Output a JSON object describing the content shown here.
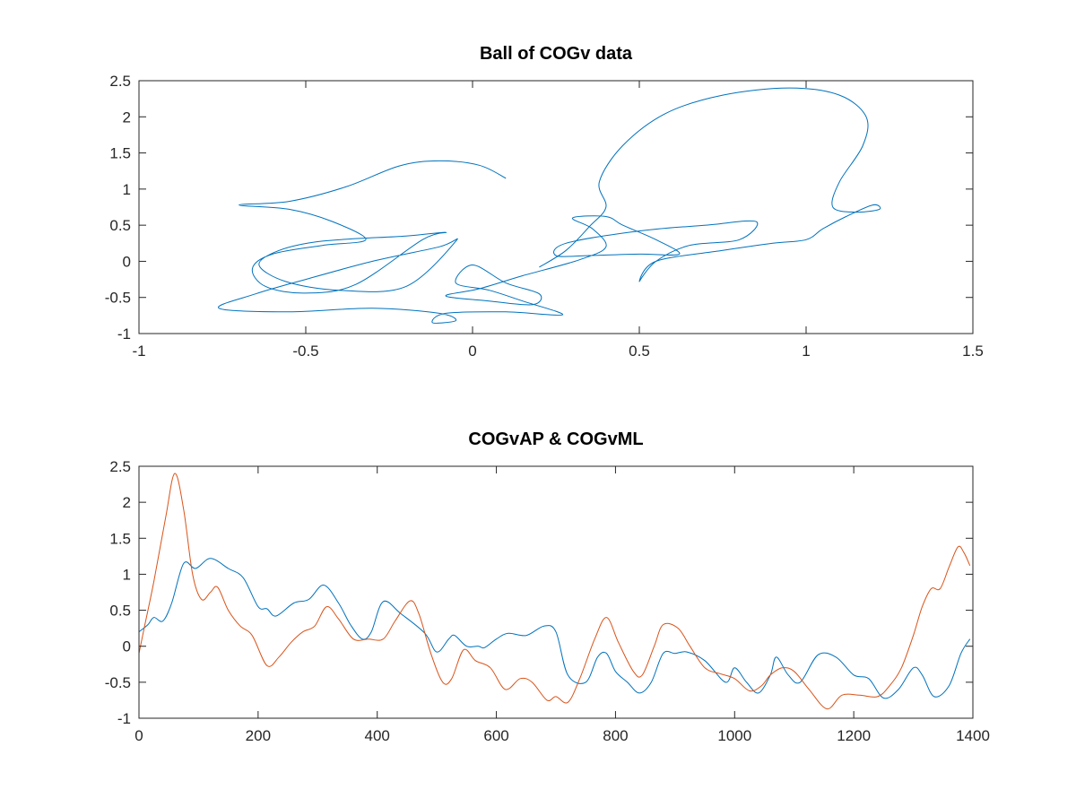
{
  "chart_data": [
    {
      "type": "line",
      "title": "Ball of COGv data",
      "xlabel": "",
      "ylabel": "",
      "xlim": [
        -1,
        1.5
      ],
      "ylim": [
        -1,
        2.5
      ],
      "xticks": [
        "-1",
        "-0.5",
        "0",
        "0.5",
        "1",
        "1.5"
      ],
      "yticks": [
        "-1",
        "-0.5",
        "0",
        "0.5",
        "1",
        "1.5",
        "2",
        "2.5"
      ],
      "grid": false,
      "colors": [
        "#0072bd"
      ],
      "series": [
        {
          "points": [
            [
              0.1,
              1.15
            ],
            [
              0.02,
              1.33
            ],
            [
              -0.1,
              1.39
            ],
            [
              -0.22,
              1.32
            ],
            [
              -0.38,
              1.03
            ],
            [
              -0.55,
              0.83
            ],
            [
              -0.7,
              0.78
            ],
            [
              -0.55,
              0.72
            ],
            [
              -0.42,
              0.55
            ],
            [
              -0.32,
              0.3
            ],
            [
              -0.45,
              0.22
            ],
            [
              -0.6,
              0.1
            ],
            [
              -0.66,
              -0.1
            ],
            [
              -0.62,
              -0.35
            ],
            [
              -0.5,
              -0.44
            ],
            [
              -0.35,
              -0.32
            ],
            [
              -0.15,
              0.3
            ],
            [
              -0.08,
              0.4
            ],
            [
              -0.2,
              0.35
            ],
            [
              -0.45,
              0.28
            ],
            [
              -0.58,
              0.15
            ],
            [
              -0.64,
              -0.05
            ],
            [
              -0.56,
              -0.28
            ],
            [
              -0.4,
              -0.4
            ],
            [
              -0.2,
              -0.35
            ],
            [
              -0.05,
              0.28
            ],
            [
              -0.1,
              0.2
            ],
            [
              -0.3,
              0.0
            ],
            [
              -0.5,
              -0.25
            ],
            [
              -0.65,
              -0.45
            ],
            [
              -0.76,
              -0.65
            ],
            [
              -0.55,
              -0.7
            ],
            [
              -0.3,
              -0.65
            ],
            [
              -0.1,
              -0.72
            ],
            [
              -0.05,
              -0.82
            ],
            [
              -0.12,
              -0.85
            ],
            [
              -0.08,
              -0.72
            ],
            [
              0.1,
              -0.7
            ],
            [
              0.27,
              -0.74
            ],
            [
              0.15,
              -0.55
            ],
            [
              0.05,
              -0.4
            ],
            [
              -0.05,
              -0.3
            ],
            [
              0.0,
              -0.05
            ],
            [
              0.1,
              -0.3
            ],
            [
              0.2,
              -0.45
            ],
            [
              0.18,
              -0.6
            ],
            [
              0.05,
              -0.55
            ],
            [
              -0.08,
              -0.48
            ],
            [
              0.02,
              -0.38
            ],
            [
              0.15,
              -0.2
            ],
            [
              0.32,
              0.02
            ],
            [
              0.4,
              0.2
            ],
            [
              0.36,
              0.45
            ],
            [
              0.3,
              0.6
            ],
            [
              0.4,
              0.62
            ],
            [
              0.45,
              0.5
            ],
            [
              0.55,
              0.3
            ],
            [
              0.62,
              0.1
            ],
            [
              0.5,
              0.1
            ],
            [
              0.35,
              0.08
            ],
            [
              0.25,
              0.08
            ],
            [
              0.28,
              0.25
            ],
            [
              0.5,
              0.42
            ],
            [
              0.7,
              0.5
            ],
            [
              0.85,
              0.55
            ],
            [
              0.8,
              0.3
            ],
            [
              0.65,
              0.22
            ],
            [
              0.55,
              0.0
            ],
            [
              0.5,
              -0.28
            ],
            [
              0.55,
              0.0
            ],
            [
              0.75,
              0.15
            ],
            [
              0.9,
              0.25
            ],
            [
              1.0,
              0.3
            ],
            [
              1.05,
              0.45
            ],
            [
              1.12,
              0.62
            ],
            [
              1.2,
              0.78
            ],
            [
              1.22,
              0.72
            ],
            [
              1.15,
              0.68
            ],
            [
              1.08,
              0.75
            ],
            [
              1.1,
              1.1
            ],
            [
              1.17,
              1.6
            ],
            [
              1.18,
              2.0
            ],
            [
              1.1,
              2.3
            ],
            [
              0.95,
              2.4
            ],
            [
              0.75,
              2.3
            ],
            [
              0.58,
              2.05
            ],
            [
              0.45,
              1.6
            ],
            [
              0.38,
              1.1
            ],
            [
              0.4,
              0.75
            ],
            [
              0.35,
              0.48
            ],
            [
              0.28,
              0.15
            ],
            [
              0.2,
              -0.08
            ]
          ]
        }
      ]
    },
    {
      "type": "line",
      "title": "COGvAP & COGvML",
      "xlabel": "",
      "ylabel": "",
      "xlim": [
        0,
        1400
      ],
      "ylim": [
        -1,
        2.5
      ],
      "xticks": [
        "0",
        "200",
        "400",
        "600",
        "800",
        "1000",
        "1200",
        "1400"
      ],
      "yticks": [
        "-1",
        "-0.5",
        "0",
        "0.5",
        "1",
        "1.5",
        "2",
        "2.5"
      ],
      "grid": false,
      "colors": [
        "#0072bd",
        "#d95319"
      ],
      "series": [
        {
          "points": [
            [
              0,
              0.2
            ],
            [
              15,
              0.3
            ],
            [
              25,
              0.4
            ],
            [
              40,
              0.35
            ],
            [
              55,
              0.6
            ],
            [
              75,
              1.15
            ],
            [
              95,
              1.08
            ],
            [
              120,
              1.22
            ],
            [
              150,
              1.08
            ],
            [
              175,
              0.95
            ],
            [
              200,
              0.55
            ],
            [
              215,
              0.52
            ],
            [
              230,
              0.42
            ],
            [
              260,
              0.6
            ],
            [
              285,
              0.65
            ],
            [
              310,
              0.85
            ],
            [
              335,
              0.6
            ],
            [
              355,
              0.3
            ],
            [
              375,
              0.1
            ],
            [
              390,
              0.2
            ],
            [
              410,
              0.62
            ],
            [
              440,
              0.45
            ],
            [
              480,
              0.18
            ],
            [
              500,
              -0.08
            ],
            [
              520,
              0.1
            ],
            [
              530,
              0.15
            ],
            [
              550,
              0.0
            ],
            [
              570,
              0.0
            ],
            [
              580,
              -0.02
            ],
            [
              600,
              0.1
            ],
            [
              620,
              0.18
            ],
            [
              650,
              0.15
            ],
            [
              680,
              0.28
            ],
            [
              700,
              0.2
            ],
            [
              720,
              -0.4
            ],
            [
              750,
              -0.5
            ],
            [
              770,
              -0.15
            ],
            [
              785,
              -0.1
            ],
            [
              800,
              -0.35
            ],
            [
              820,
              -0.5
            ],
            [
              840,
              -0.65
            ],
            [
              860,
              -0.5
            ],
            [
              880,
              -0.1
            ],
            [
              900,
              -0.1
            ],
            [
              920,
              -0.08
            ],
            [
              950,
              -0.2
            ],
            [
              985,
              -0.5
            ],
            [
              1000,
              -0.3
            ],
            [
              1020,
              -0.5
            ],
            [
              1040,
              -0.65
            ],
            [
              1060,
              -0.4
            ],
            [
              1070,
              -0.15
            ],
            [
              1090,
              -0.4
            ],
            [
              1110,
              -0.5
            ],
            [
              1140,
              -0.12
            ],
            [
              1170,
              -0.15
            ],
            [
              1200,
              -0.4
            ],
            [
              1225,
              -0.45
            ],
            [
              1250,
              -0.72
            ],
            [
              1275,
              -0.6
            ],
            [
              1300,
              -0.3
            ],
            [
              1315,
              -0.4
            ],
            [
              1335,
              -0.7
            ],
            [
              1360,
              -0.55
            ],
            [
              1380,
              -0.1
            ],
            [
              1395,
              0.1
            ]
          ]
        },
        {
          "points": [
            [
              0,
              -0.1
            ],
            [
              10,
              0.3
            ],
            [
              25,
              0.9
            ],
            [
              45,
              1.8
            ],
            [
              60,
              2.4
            ],
            [
              75,
              1.9
            ],
            [
              90,
              1.0
            ],
            [
              105,
              0.65
            ],
            [
              120,
              0.75
            ],
            [
              132,
              0.82
            ],
            [
              150,
              0.5
            ],
            [
              170,
              0.28
            ],
            [
              190,
              0.15
            ],
            [
              215,
              -0.27
            ],
            [
              235,
              -0.15
            ],
            [
              255,
              0.05
            ],
            [
              275,
              0.2
            ],
            [
              295,
              0.28
            ],
            [
              315,
              0.55
            ],
            [
              335,
              0.38
            ],
            [
              360,
              0.1
            ],
            [
              385,
              0.1
            ],
            [
              410,
              0.1
            ],
            [
              430,
              0.35
            ],
            [
              455,
              0.63
            ],
            [
              470,
              0.45
            ],
            [
              490,
              -0.1
            ],
            [
              510,
              -0.5
            ],
            [
              525,
              -0.45
            ],
            [
              545,
              -0.05
            ],
            [
              565,
              -0.2
            ],
            [
              590,
              -0.3
            ],
            [
              615,
              -0.6
            ],
            [
              640,
              -0.45
            ],
            [
              660,
              -0.5
            ],
            [
              685,
              -0.75
            ],
            [
              700,
              -0.7
            ],
            [
              720,
              -0.78
            ],
            [
              740,
              -0.45
            ],
            [
              765,
              0.1
            ],
            [
              785,
              0.4
            ],
            [
              805,
              0.05
            ],
            [
              830,
              -0.35
            ],
            [
              845,
              -0.4
            ],
            [
              865,
              0.0
            ],
            [
              880,
              0.3
            ],
            [
              905,
              0.25
            ],
            [
              925,
              0.0
            ],
            [
              950,
              -0.3
            ],
            [
              975,
              -0.38
            ],
            [
              1000,
              -0.45
            ],
            [
              1025,
              -0.62
            ],
            [
              1045,
              -0.55
            ],
            [
              1060,
              -0.4
            ],
            [
              1080,
              -0.3
            ],
            [
              1100,
              -0.35
            ],
            [
              1125,
              -0.6
            ],
            [
              1155,
              -0.87
            ],
            [
              1180,
              -0.68
            ],
            [
              1210,
              -0.68
            ],
            [
              1240,
              -0.7
            ],
            [
              1260,
              -0.55
            ],
            [
              1280,
              -0.3
            ],
            [
              1300,
              0.15
            ],
            [
              1315,
              0.55
            ],
            [
              1330,
              0.8
            ],
            [
              1345,
              0.8
            ],
            [
              1360,
              1.1
            ],
            [
              1375,
              1.38
            ],
            [
              1385,
              1.3
            ],
            [
              1395,
              1.12
            ]
          ]
        }
      ]
    }
  ]
}
